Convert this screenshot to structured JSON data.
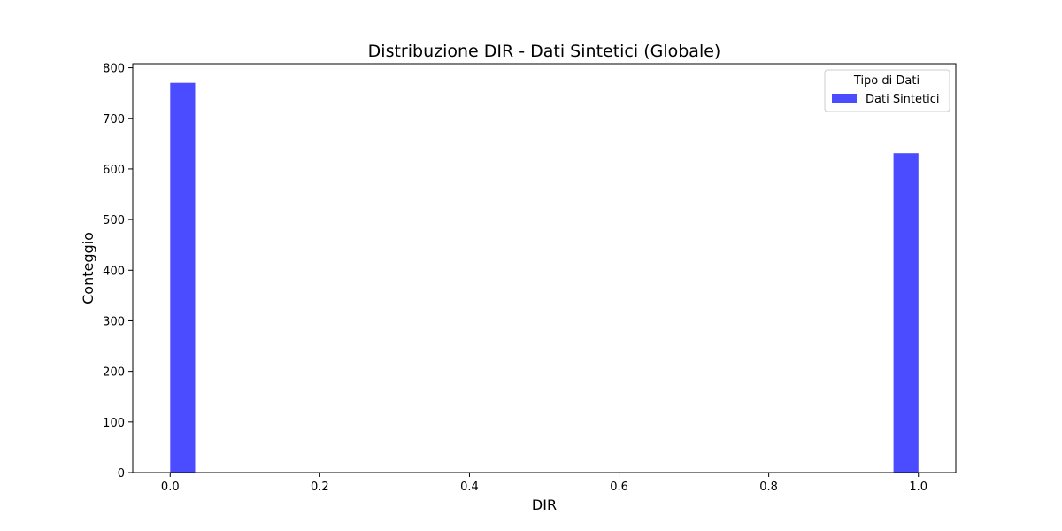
{
  "chart_data": {
    "type": "bar",
    "title": "Distribuzione DIR - Dati Sintetici (Globale)",
    "xlabel": "DIR",
    "ylabel": "Conteggio",
    "xlim": [
      -0.05,
      1.05
    ],
    "ylim": [
      0,
      808
    ],
    "xticks": [
      "0.0",
      "0.2",
      "0.4",
      "0.6",
      "0.8",
      "1.0"
    ],
    "xtick_values": [
      0.0,
      0.2,
      0.4,
      0.6,
      0.8,
      1.0
    ],
    "yticks": [
      "0",
      "100",
      "200",
      "300",
      "400",
      "500",
      "600",
      "700",
      "800"
    ],
    "ytick_values": [
      0,
      100,
      200,
      300,
      400,
      500,
      600,
      700,
      800
    ],
    "bin_width": 0.0333,
    "bars": [
      {
        "x_start": 0.0,
        "x_end": 0.0333,
        "value": 770
      },
      {
        "x_start": 0.9667,
        "x_end": 1.0,
        "value": 631
      }
    ],
    "series": [
      {
        "name": "Dati Sintetici",
        "color": "#4b4bff"
      }
    ],
    "legend": {
      "title": "Tipo di Dati",
      "placement": "top-right"
    },
    "grid": false
  }
}
